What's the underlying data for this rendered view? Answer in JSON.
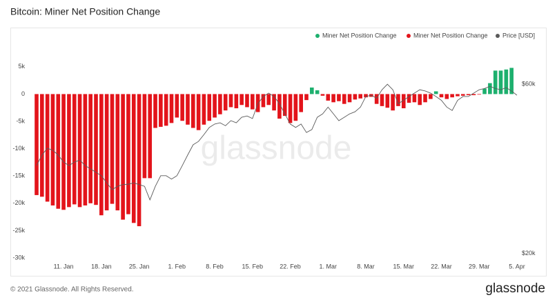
{
  "chart_data": {
    "type": "bar",
    "title": "Bitcoin: Miner Net Position Change",
    "watermark": "glassnode",
    "footer": "© 2021 Glassnode. All Rights Reserved.",
    "logo": "glassnode",
    "categories": [
      null,
      null,
      null,
      null,
      null,
      "11. Jan",
      null,
      null,
      null,
      null,
      null,
      null,
      "18. Jan",
      null,
      null,
      null,
      null,
      null,
      null,
      "25. Jan",
      null,
      null,
      null,
      null,
      null,
      null,
      "1. Feb",
      null,
      null,
      null,
      null,
      null,
      null,
      "8. Feb",
      null,
      null,
      null,
      null,
      null,
      null,
      "15. Feb",
      null,
      null,
      null,
      null,
      null,
      null,
      "22. Feb",
      null,
      null,
      null,
      null,
      null,
      null,
      "1. Mar",
      null,
      null,
      null,
      null,
      null,
      null,
      "8. Mar",
      null,
      null,
      null,
      null,
      null,
      null,
      "15. Mar",
      null,
      null,
      null,
      null,
      null,
      null,
      "22. Mar",
      null,
      null,
      null,
      null,
      null,
      null,
      "29. Mar",
      null,
      null,
      null,
      null,
      null,
      null,
      "5. Apr"
    ],
    "series": [
      {
        "name": "Miner Net Position Change",
        "color": "#1db06e",
        "values": [
          null,
          null,
          null,
          null,
          null,
          null,
          null,
          null,
          null,
          null,
          null,
          null,
          null,
          null,
          null,
          null,
          null,
          null,
          null,
          null,
          null,
          null,
          null,
          null,
          null,
          null,
          null,
          null,
          null,
          null,
          null,
          null,
          null,
          null,
          null,
          null,
          null,
          null,
          null,
          null,
          null,
          null,
          null,
          null,
          null,
          null,
          null,
          null,
          null,
          null,
          null,
          1200,
          700,
          null,
          null,
          null,
          null,
          null,
          null,
          null,
          null,
          null,
          null,
          null,
          null,
          null,
          null,
          null,
          null,
          null,
          null,
          null,
          null,
          null,
          500,
          null,
          null,
          null,
          null,
          null,
          null,
          null,
          null,
          1000,
          2000,
          4300,
          4300,
          4500,
          4800,
          null
        ]
      },
      {
        "name": "Miner Net Position Change",
        "color": "#e3141b",
        "values": [
          -18500,
          -18800,
          -19700,
          -20400,
          -21000,
          -21200,
          -20700,
          -20200,
          -20700,
          -20400,
          -20000,
          -20300,
          -22200,
          -21300,
          -20100,
          -21300,
          -23000,
          -22000,
          -23600,
          -24200,
          -15400,
          -15400,
          -6200,
          -6000,
          -5800,
          -5300,
          -4300,
          -4900,
          -5600,
          -6200,
          -6600,
          -5600,
          -4900,
          -4300,
          -3700,
          -3000,
          -2400,
          -2600,
          -2000,
          -2400,
          -2800,
          -3300,
          -2400,
          -2000,
          -3000,
          -4500,
          -4000,
          -5300,
          -4900,
          -3300,
          -1100,
          null,
          null,
          -300,
          -1200,
          -1500,
          -1300,
          -1800,
          -1500,
          -1000,
          -800,
          -600,
          -500,
          -1800,
          -2200,
          -2500,
          -3000,
          -2200,
          -2600,
          -1600,
          -1500,
          -2000,
          -1500,
          -900,
          null,
          -600,
          -900,
          -600,
          -400,
          -300,
          -200,
          -200,
          -100,
          null,
          null,
          null,
          null,
          null,
          null,
          null
        ]
      },
      {
        "name": "Price [USD]",
        "color": "#5a5a5a",
        "axis": "y2",
        "type": "line",
        "values": [
          40800,
          43300,
          44900,
          44400,
          43300,
          41600,
          40800,
          41600,
          42100,
          40800,
          40000,
          39200,
          38400,
          36700,
          35100,
          35900,
          36300,
          36400,
          36700,
          36300,
          35900,
          32700,
          35900,
          38400,
          38400,
          37600,
          38400,
          40800,
          43300,
          45700,
          46500,
          48100,
          49800,
          50600,
          50900,
          50200,
          51400,
          50900,
          52200,
          52500,
          51900,
          55400,
          57100,
          57900,
          57100,
          55400,
          53000,
          50600,
          49800,
          50600,
          48600,
          49300,
          52200,
          53000,
          54600,
          53000,
          51400,
          52200,
          53000,
          53500,
          54600,
          57100,
          57400,
          56700,
          58700,
          60000,
          58700,
          55400,
          56200,
          57100,
          57900,
          58700,
          58400,
          57900,
          57100,
          56200,
          54600,
          53800,
          56200,
          57100,
          57100,
          57900,
          58700,
          59000,
          59500,
          59000,
          58700,
          59200,
          58400,
          57400
        ]
      }
    ],
    "ylim": [
      -30000,
      7000
    ],
    "yticks": [
      {
        "value": 5000,
        "label": "5k"
      },
      0,
      {
        "value": -5000,
        "label": "-5k"
      },
      {
        "value": -10000,
        "label": "-10k"
      },
      {
        "value": -15000,
        "label": "-15k"
      },
      {
        "value": -20000,
        "label": "-20k"
      },
      {
        "value": -25000,
        "label": "-25k"
      },
      {
        "value": -30000,
        "label": "-30k"
      }
    ],
    "y2lim": [
      19000,
      66700
    ],
    "y2ticks": [
      {
        "value": 60000,
        "label": "$60k"
      },
      {
        "value": 20000,
        "label": "$20k"
      }
    ],
    "grid": false,
    "legend": "top-right"
  }
}
